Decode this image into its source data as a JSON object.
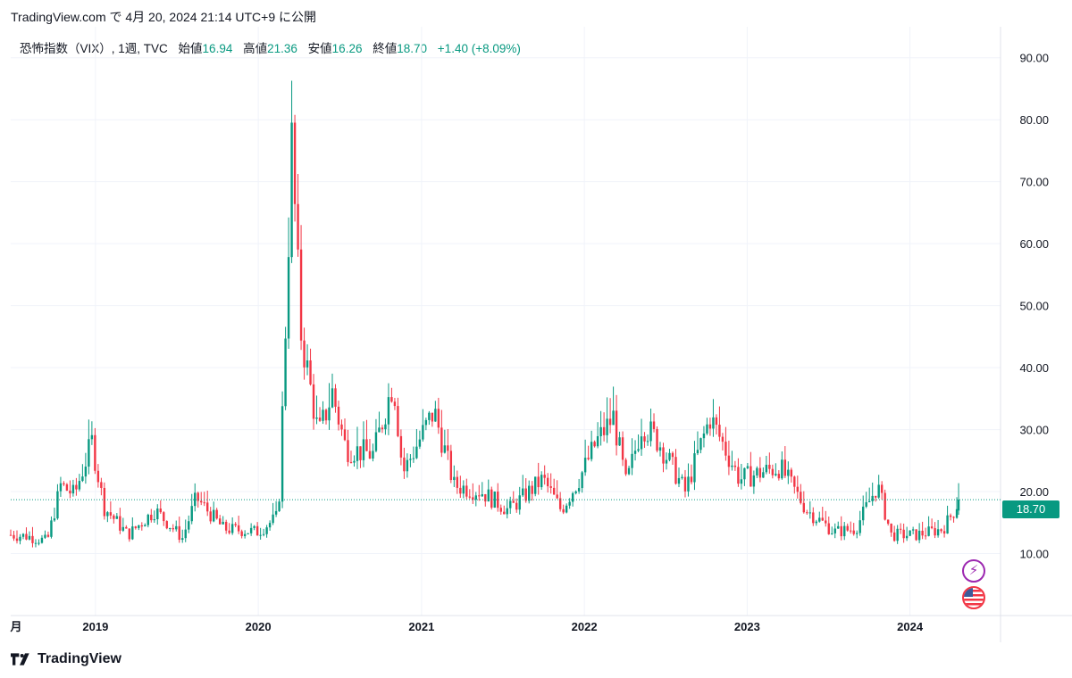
{
  "header": {
    "publish_line": "TradingView.com で 4月 20, 2024 21:14 UTC+9 に公開"
  },
  "legend": {
    "symbol": "恐怖指数（VIX）, 1週, TVC",
    "open_label": "始値",
    "open_value": "16.94",
    "high_label": "高値",
    "high_value": "21.36",
    "low_label": "安値",
    "low_value": "16.26",
    "close_label": "終値",
    "close_value": "18.70",
    "change": "+1.40 (+8.09%)"
  },
  "footer": {
    "brand": "TradingView"
  },
  "price_tag": "18.70",
  "icons": {
    "event_icon": "lightning-icon",
    "country_icon": "us-flag-icon"
  },
  "colors": {
    "up": "#089981",
    "down": "#f23645",
    "grid": "#f0f3fa",
    "last_price_line": "#089981"
  },
  "chart_data": {
    "type": "candlestick",
    "interval": "weekly",
    "y_axis_ticks": [
      "10.00",
      "20.00",
      "30.00",
      "40.00",
      "50.00",
      "60.00",
      "70.00",
      "80.00",
      "90.00"
    ],
    "x_axis_ticks": [
      "月",
      "2019",
      "2020",
      "2021",
      "2022",
      "2023",
      "2024"
    ],
    "ylim": [
      0,
      95
    ],
    "xlim": [
      "2018-06-25",
      "2024-07-22"
    ],
    "last_price": 18.7,
    "grid": true,
    "anchors_close": [
      [
        "2018-06-25",
        13.0
      ],
      [
        "2018-08-01",
        12.8
      ],
      [
        "2018-09-15",
        12.0
      ],
      [
        "2018-10-15",
        21.0
      ],
      [
        "2018-11-15",
        19.5
      ],
      [
        "2018-12-24",
        28.0
      ],
      [
        "2019-01-20",
        17.5
      ],
      [
        "2019-03-15",
        13.0
      ],
      [
        "2019-05-15",
        17.0
      ],
      [
        "2019-07-15",
        12.5
      ],
      [
        "2019-08-15",
        19.0
      ],
      [
        "2019-10-15",
        14.0
      ],
      [
        "2019-12-31",
        13.5
      ],
      [
        "2020-02-15",
        16.0
      ],
      [
        "2020-02-28",
        40.0
      ],
      [
        "2020-03-16",
        76.0
      ],
      [
        "2020-04-05",
        46.0
      ],
      [
        "2020-05-15",
        29.0
      ],
      [
        "2020-06-15",
        36.0
      ],
      [
        "2020-07-15",
        27.0
      ],
      [
        "2020-09-15",
        26.0
      ],
      [
        "2020-10-30",
        38.0
      ],
      [
        "2020-11-20",
        23.0
      ],
      [
        "2021-01-29",
        33.0
      ],
      [
        "2021-03-15",
        21.0
      ],
      [
        "2021-05-15",
        20.0
      ],
      [
        "2021-07-15",
        17.0
      ],
      [
        "2021-09-30",
        22.0
      ],
      [
        "2021-11-10",
        17.0
      ],
      [
        "2021-12-20",
        22.0
      ],
      [
        "2022-01-28",
        28.0
      ],
      [
        "2022-03-07",
        32.0
      ],
      [
        "2022-04-05",
        21.0
      ],
      [
        "2022-05-10",
        31.0
      ],
      [
        "2022-06-17",
        28.0
      ],
      [
        "2022-08-15",
        20.0
      ],
      [
        "2022-10-10",
        32.0
      ],
      [
        "2022-12-15",
        22.0
      ],
      [
        "2023-03-15",
        24.0
      ],
      [
        "2023-05-15",
        17.0
      ],
      [
        "2023-07-15",
        13.5
      ],
      [
        "2023-09-01",
        14.0
      ],
      [
        "2023-10-20",
        21.0
      ],
      [
        "2023-11-20",
        13.0
      ],
      [
        "2024-01-15",
        13.0
      ],
      [
        "2024-03-15",
        14.0
      ],
      [
        "2024-04-12",
        17.3
      ],
      [
        "2024-04-19",
        18.7
      ]
    ],
    "last_candle": {
      "date": "2024-04-19",
      "open": 16.94,
      "high": 21.36,
      "low": 16.26,
      "close": 18.7
    }
  }
}
